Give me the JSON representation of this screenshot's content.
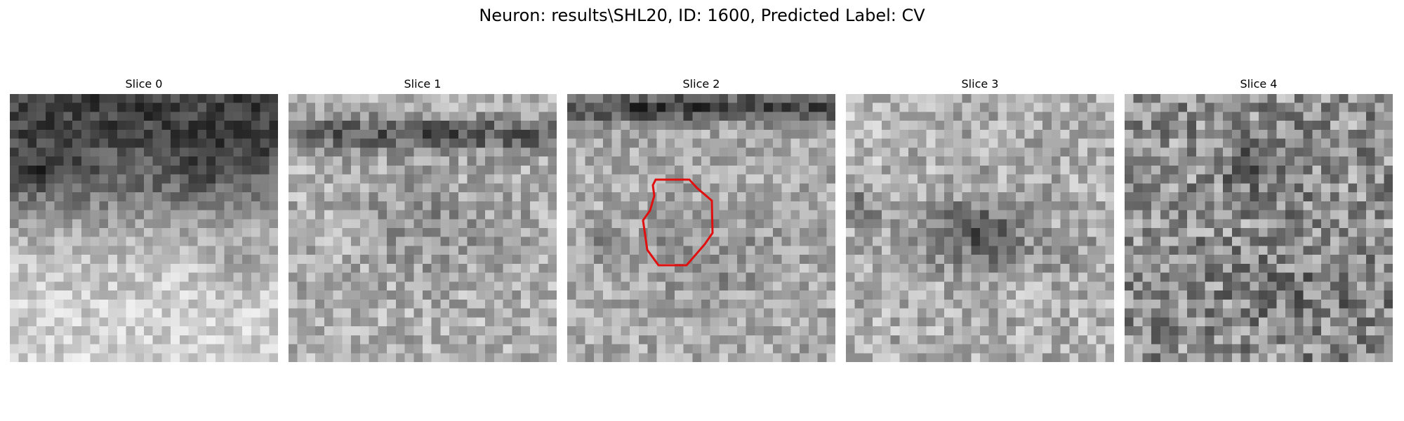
{
  "figure": {
    "title": "Neuron: results\\SHL20, ID: 1600, Predicted Label: CV"
  },
  "slices": [
    {
      "title": "Slice 0"
    },
    {
      "title": "Slice 1"
    },
    {
      "title": "Slice 2"
    },
    {
      "title": "Slice 3"
    },
    {
      "title": "Slice 4"
    }
  ],
  "colors": {
    "background": "#ffffff",
    "outline": "#e01010"
  }
}
